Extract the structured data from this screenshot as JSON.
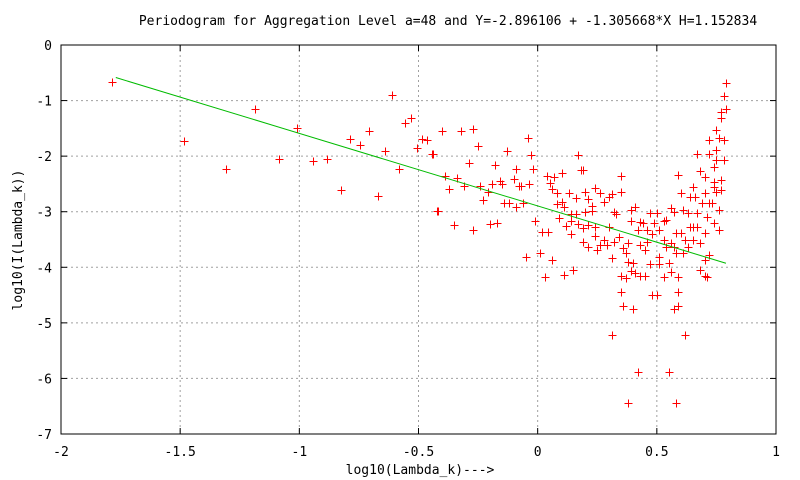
{
  "chart_data": {
    "type": "scatter",
    "title": "Periodogram for Aggregation Level a=48 and Y=-2.896106 + -1.305668*X H=1.152834",
    "xlabel": "log10(Lambda_k)--->",
    "ylabel": "log10(I(Lambda_k))",
    "xlim": [
      -2,
      1
    ],
    "ylim": [
      -7,
      0
    ],
    "xticks": [
      -2,
      -1.5,
      -1,
      -0.5,
      0,
      0.5,
      1
    ],
    "xtick_labels": [
      "-2",
      "-1.5",
      "-1",
      "-0.5",
      "0",
      "0.5",
      "1"
    ],
    "yticks": [
      0,
      -1,
      -2,
      -3,
      -4,
      -5,
      -6,
      -7
    ],
    "ytick_labels": [
      "0",
      "-1",
      "-2",
      "-3",
      "-4",
      "-5",
      "-6",
      "-7"
    ],
    "grid": true,
    "colors": {
      "points": "#ff0000",
      "fit": "#00bb00",
      "grid": "#a0a0a0"
    },
    "fit_line": {
      "intercept": -2.896106,
      "slope": -1.305668,
      "x_range": [
        -1.77,
        0.79
      ]
    },
    "points": [
      [
        -1.785,
        -0.67
      ],
      [
        -1.483,
        -1.73
      ],
      [
        -1.306,
        -2.24
      ],
      [
        -1.185,
        -1.16
      ],
      [
        -1.084,
        -2.05
      ],
      [
        -1.008,
        -1.49
      ],
      [
        -0.941,
        -2.09
      ],
      [
        -0.883,
        -2.05
      ],
      [
        -0.826,
        -2.61
      ],
      [
        -0.786,
        -1.7
      ],
      [
        -0.745,
        -1.8
      ],
      [
        -0.706,
        -1.55
      ],
      [
        -0.669,
        -2.72
      ],
      [
        -0.639,
        -1.91
      ],
      [
        -0.61,
        -0.9
      ],
      [
        -0.58,
        -2.24
      ],
      [
        -0.555,
        -1.41
      ],
      [
        -0.531,
        -1.32
      ],
      [
        -0.506,
        -1.86
      ],
      [
        -0.485,
        -1.7
      ],
      [
        -0.463,
        -1.71
      ],
      [
        -0.442,
        -1.97
      ],
      [
        -0.422,
        -2.99
      ],
      [
        -0.4,
        -1.54
      ],
      [
        -0.32,
        -1.54
      ],
      [
        -0.27,
        -1.52
      ],
      [
        -0.25,
        -1.81
      ],
      [
        -0.44,
        -1.97
      ],
      [
        -0.13,
        -1.91
      ],
      [
        -0.04,
        -1.67
      ],
      [
        -0.03,
        -1.98
      ],
      [
        -0.02,
        -2.24
      ],
      [
        -0.29,
        -2.12
      ],
      [
        -0.18,
        -2.16
      ],
      [
        -0.09,
        -2.24
      ],
      [
        -0.39,
        -2.36
      ],
      [
        -0.34,
        -2.4
      ],
      [
        -0.37,
        -2.59
      ],
      [
        -0.31,
        -2.54
      ],
      [
        -0.24,
        -2.54
      ],
      [
        -0.19,
        -2.5
      ],
      [
        -0.16,
        -2.44
      ],
      [
        -0.15,
        -2.51
      ],
      [
        -0.1,
        -2.42
      ],
      [
        -0.08,
        -2.54
      ],
      [
        -0.07,
        -2.54
      ],
      [
        -0.035,
        -2.5
      ],
      [
        -0.42,
        -2.99
      ],
      [
        -0.35,
        -3.24
      ],
      [
        -0.27,
        -3.33
      ],
      [
        -0.2,
        -3.22
      ],
      [
        -0.17,
        -3.2
      ],
      [
        -0.23,
        -2.79
      ],
      [
        -0.21,
        -2.64
      ],
      [
        -0.14,
        -2.85
      ],
      [
        -0.12,
        -2.84
      ],
      [
        -0.09,
        -2.91
      ],
      [
        -0.06,
        -2.85
      ],
      [
        -0.01,
        -3.17
      ],
      [
        -0.05,
        -3.81
      ],
      [
        0.01,
        -3.74
      ],
      [
        0.06,
        -3.86
      ],
      [
        0.02,
        -3.37
      ],
      [
        0.045,
        -3.37
      ],
      [
        0.03,
        -4.17
      ],
      [
        0.11,
        -4.14
      ],
      [
        0.15,
        -4.04
      ],
      [
        0.04,
        -2.36
      ],
      [
        0.05,
        -2.49
      ],
      [
        0.07,
        -2.37
      ],
      [
        0.1,
        -2.31
      ],
      [
        0.06,
        -2.59
      ],
      [
        0.08,
        -2.67
      ],
      [
        0.13,
        -2.66
      ],
      [
        0.08,
        -2.87
      ],
      [
        0.1,
        -2.83
      ],
      [
        0.11,
        -2.92
      ],
      [
        0.09,
        -3.11
      ],
      [
        0.14,
        -3.04
      ],
      [
        0.16,
        -3.05
      ],
      [
        0.14,
        -3.17
      ],
      [
        0.12,
        -3.25
      ],
      [
        0.14,
        -3.4
      ],
      [
        0.16,
        -2.76
      ],
      [
        0.17,
        -3.22
      ],
      [
        0.19,
        -3.29
      ],
      [
        0.17,
        -1.98
      ],
      [
        0.18,
        -2.25
      ],
      [
        0.19,
        -2.25
      ],
      [
        0.2,
        -2.64
      ],
      [
        0.21,
        -2.78
      ],
      [
        0.23,
        -2.89
      ],
      [
        0.24,
        -2.57
      ],
      [
        0.23,
        -2.99
      ],
      [
        0.26,
        -2.66
      ],
      [
        0.28,
        -2.83
      ],
      [
        0.3,
        -2.74
      ],
      [
        0.31,
        -2.69
      ],
      [
        0.35,
        -2.65
      ],
      [
        0.35,
        -2.35
      ],
      [
        0.2,
        -3.01
      ],
      [
        0.21,
        -3.24
      ],
      [
        0.24,
        -3.27
      ],
      [
        0.19,
        -3.54
      ],
      [
        0.21,
        -3.64
      ],
      [
        0.25,
        -3.69
      ],
      [
        0.24,
        -3.43
      ],
      [
        0.28,
        -3.51
      ],
      [
        0.29,
        -3.6
      ],
      [
        0.26,
        -3.6
      ],
      [
        0.3,
        -3.27
      ],
      [
        0.32,
        -3.0
      ],
      [
        0.33,
        -3.04
      ],
      [
        0.31,
        -3.84
      ],
      [
        0.32,
        -3.54
      ],
      [
        0.34,
        -3.45
      ],
      [
        0.36,
        -3.66
      ],
      [
        0.37,
        -3.75
      ],
      [
        0.38,
        -3.57
      ],
      [
        0.39,
        -3.17
      ],
      [
        0.39,
        -2.97
      ],
      [
        0.41,
        -2.92
      ],
      [
        0.42,
        -3.33
      ],
      [
        0.43,
        -3.18
      ],
      [
        0.44,
        -3.21
      ],
      [
        0.46,
        -3.33
      ],
      [
        0.47,
        -3.03
      ],
      [
        0.49,
        -3.21
      ],
      [
        0.5,
        -3.03
      ],
      [
        0.51,
        -3.33
      ],
      [
        0.53,
        -3.16
      ],
      [
        0.54,
        -3.15
      ],
      [
        0.56,
        -2.94
      ],
      [
        0.57,
        -3.0
      ],
      [
        0.59,
        -2.34
      ],
      [
        0.6,
        -2.67
      ],
      [
        0.61,
        -2.97
      ],
      [
        0.63,
        -3.02
      ],
      [
        0.64,
        -2.73
      ],
      [
        0.65,
        -2.55
      ],
      [
        0.66,
        -2.74
      ],
      [
        0.67,
        -1.97
      ],
      [
        0.68,
        -2.26
      ],
      [
        0.7,
        -2.37
      ],
      [
        0.7,
        -2.67
      ],
      [
        0.72,
        -1.71
      ],
      [
        0.72,
        -1.97
      ],
      [
        0.74,
        -2.19
      ],
      [
        0.75,
        -1.89
      ],
      [
        0.75,
        -1.53
      ],
      [
        0.76,
        -1.67
      ],
      [
        0.77,
        -1.32
      ],
      [
        0.77,
        -1.2
      ],
      [
        0.78,
        -1.71
      ],
      [
        0.78,
        -2.07
      ],
      [
        0.79,
        -0.68
      ],
      [
        0.78,
        -0.91
      ],
      [
        0.79,
        -1.16
      ],
      [
        0.77,
        -2.43
      ],
      [
        0.75,
        -2.64
      ],
      [
        0.73,
        -2.85
      ],
      [
        0.71,
        -3.09
      ],
      [
        0.7,
        -3.39
      ],
      [
        0.67,
        -3.27
      ],
      [
        0.68,
        -3.57
      ],
      [
        0.65,
        -3.51
      ],
      [
        0.64,
        -3.27
      ],
      [
        0.63,
        -3.63
      ],
      [
        0.61,
        -3.75
      ],
      [
        0.58,
        -3.75
      ],
      [
        0.57,
        -3.63
      ],
      [
        0.56,
        -3.57
      ],
      [
        0.55,
        -3.93
      ],
      [
        0.53,
        -4.17
      ],
      [
        0.56,
        -4.08
      ],
      [
        0.59,
        -4.17
      ],
      [
        0.68,
        -4.04
      ],
      [
        0.7,
        -4.16
      ],
      [
        0.71,
        -4.17
      ],
      [
        0.72,
        -3.78
      ],
      [
        0.7,
        -3.86
      ],
      [
        0.38,
        -3.9
      ],
      [
        0.4,
        -3.93
      ],
      [
        0.39,
        -4.07
      ],
      [
        0.41,
        -4.11
      ],
      [
        0.43,
        -4.16
      ],
      [
        0.45,
        -4.16
      ],
      [
        0.47,
        -3.94
      ],
      [
        0.51,
        -3.94
      ],
      [
        0.35,
        -4.16
      ],
      [
        0.37,
        -4.2
      ],
      [
        0.35,
        -4.44
      ],
      [
        0.36,
        -4.69
      ],
      [
        0.4,
        -4.75
      ],
      [
        0.48,
        -4.5
      ],
      [
        0.5,
        -4.5
      ],
      [
        0.59,
        -4.44
      ],
      [
        0.59,
        -4.69
      ],
      [
        0.57,
        -4.75
      ],
      [
        0.31,
        -5.21
      ],
      [
        0.62,
        -5.21
      ],
      [
        0.42,
        -5.89
      ],
      [
        0.55,
        -5.89
      ],
      [
        0.38,
        -6.45
      ],
      [
        0.58,
        -6.45
      ],
      [
        0.48,
        -3.41
      ],
      [
        0.46,
        -3.54
      ],
      [
        0.45,
        -3.69
      ],
      [
        0.43,
        -3.6
      ],
      [
        0.53,
        -3.51
      ],
      [
        0.54,
        -3.63
      ],
      [
        0.51,
        -3.81
      ],
      [
        0.58,
        -3.38
      ],
      [
        0.6,
        -3.39
      ],
      [
        0.62,
        -3.51
      ],
      [
        0.65,
        -3.27
      ],
      [
        0.67,
        -3.03
      ],
      [
        0.69,
        -2.85
      ],
      [
        0.72,
        -2.85
      ],
      [
        0.74,
        -2.46
      ],
      [
        0.74,
        -3.21
      ],
      [
        0.76,
        -3.33
      ],
      [
        0.74,
        -2.55
      ],
      [
        0.76,
        -2.97
      ],
      [
        0.77,
        -2.61
      ],
      [
        0.75,
        -2.07
      ]
    ]
  }
}
